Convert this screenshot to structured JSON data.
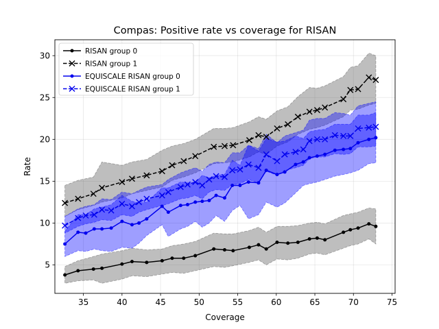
{
  "chart_data": {
    "type": "line",
    "title": "Compas: Positive rate vs coverage for RISAN",
    "xlabel": "Coverage",
    "ylabel": "Rate",
    "xlim": [
      31.3,
      75.4
    ],
    "ylim": [
      1.6,
      31.9
    ],
    "xticks": [
      35,
      40,
      45,
      50,
      55,
      60,
      65,
      70,
      75
    ],
    "yticks": [
      5,
      10,
      15,
      20,
      25,
      30
    ],
    "grid": true,
    "legend_position": "top-left",
    "series": [
      {
        "name": "RISAN group 0",
        "color": "#000000",
        "linestyle": "solid",
        "marker": "dot",
        "band_color": "#555555",
        "x": [
          32.6,
          34.3,
          36.3,
          37.4,
          40.0,
          41.3,
          43.2,
          45.2,
          46.5,
          48.0,
          49.5,
          51.9,
          53.3,
          54.4,
          56.5,
          57.7,
          58.7,
          60.1,
          61.5,
          62.8,
          64.3,
          65.3,
          66.3,
          68.7,
          69.6,
          70.6,
          72.0,
          72.9
        ],
        "y": [
          3.8,
          4.3,
          4.5,
          4.6,
          5.1,
          5.4,
          5.3,
          5.5,
          5.8,
          5.8,
          6.1,
          6.9,
          6.8,
          6.7,
          7.1,
          7.4,
          6.9,
          7.7,
          7.6,
          7.7,
          8.1,
          8.2,
          8.0,
          8.9,
          9.2,
          9.4,
          9.9,
          9.6
        ],
        "lower": [
          2.8,
          3.1,
          3.2,
          2.8,
          3.3,
          3.7,
          3.6,
          3.9,
          4.1,
          4.0,
          4.3,
          4.8,
          4.7,
          4.9,
          5.3,
          5.6,
          5.0,
          5.7,
          5.6,
          5.8,
          6.3,
          6.4,
          6.2,
          7.0,
          7.3,
          7.5,
          8.1,
          7.5
        ],
        "upper": [
          4.8,
          5.5,
          6.0,
          6.3,
          6.7,
          7.0,
          6.8,
          6.9,
          7.3,
          7.5,
          7.8,
          8.8,
          8.7,
          8.7,
          9.1,
          9.5,
          8.9,
          9.6,
          9.6,
          9.7,
          10.0,
          10.1,
          9.9,
          10.9,
          11.1,
          11.3,
          11.8,
          11.7
        ]
      },
      {
        "name": "RISAN group 1",
        "color": "#000000",
        "linestyle": "dashed",
        "marker": "x",
        "band_color": "#555555",
        "x": [
          32.6,
          34.3,
          36.3,
          37.4,
          40.0,
          41.3,
          43.2,
          45.2,
          46.5,
          48.0,
          49.5,
          51.9,
          53.3,
          54.4,
          56.5,
          57.7,
          58.7,
          60.1,
          61.5,
          62.8,
          64.3,
          65.3,
          66.3,
          68.7,
          69.6,
          70.6,
          72.0,
          72.9
        ],
        "y": [
          12.4,
          12.9,
          13.5,
          14.2,
          14.9,
          15.3,
          15.7,
          16.2,
          16.9,
          17.4,
          18.0,
          19.1,
          19.2,
          19.3,
          19.9,
          20.5,
          20.3,
          21.3,
          21.8,
          22.7,
          23.3,
          23.5,
          23.8,
          24.8,
          25.9,
          26.0,
          27.4,
          27.1
        ],
        "lower": [
          10.8,
          11.6,
          12.1,
          12.5,
          13.0,
          13.5,
          13.9,
          14.3,
          15.1,
          15.5,
          16.0,
          17.1,
          17.2,
          17.3,
          17.9,
          18.5,
          18.2,
          19.2,
          19.7,
          20.6,
          21.2,
          21.4,
          21.7,
          22.7,
          23.5,
          23.6,
          24.1,
          24.3
        ],
        "upper": [
          14.5,
          15.1,
          15.5,
          17.3,
          16.9,
          17.3,
          17.6,
          18.7,
          19.2,
          19.5,
          20.0,
          21.3,
          21.3,
          21.4,
          22.1,
          22.7,
          22.4,
          23.4,
          23.9,
          25.1,
          26.2,
          26.1,
          26.4,
          27.5,
          28.6,
          28.8,
          30.3,
          30.0
        ]
      },
      {
        "name": "EQUISCALE RISAN group 0",
        "color": "#0000ee",
        "linestyle": "solid",
        "marker": "dot",
        "band_color": "#0000ff",
        "x": [
          32.6,
          34.3,
          35.3,
          36.4,
          37.4,
          38.6,
          40.0,
          41.3,
          42.2,
          43.2,
          45.2,
          46.0,
          47.6,
          48.5,
          49.5,
          50.4,
          51.3,
          52.2,
          53.3,
          54.3,
          55.3,
          56.4,
          57.7,
          58.7,
          60.1,
          61.1,
          62.5,
          63.5,
          64.3,
          65.3,
          66.3,
          67.6,
          68.7,
          69.6,
          70.6,
          72.0,
          72.9
        ],
        "y": [
          7.5,
          8.9,
          8.8,
          9.3,
          9.3,
          9.4,
          10.2,
          9.8,
          10.0,
          10.5,
          12.0,
          11.3,
          12.1,
          12.2,
          12.5,
          12.6,
          12.7,
          13.3,
          13.0,
          14.5,
          14.5,
          14.9,
          14.8,
          16.3,
          15.8,
          16.1,
          17.0,
          17.3,
          17.8,
          18.0,
          18.2,
          18.7,
          18.8,
          18.9,
          19.6,
          20.0,
          20.2
        ],
        "lower": [
          6.0,
          6.7,
          6.6,
          6.9,
          6.7,
          6.6,
          7.1,
          7.0,
          7.6,
          8.5,
          9.8,
          8.4,
          9.3,
          9.6,
          10.2,
          9.5,
          10.0,
          10.9,
          10.2,
          11.5,
          12.1,
          10.5,
          11.0,
          12.5,
          11.9,
          12.4,
          13.6,
          14.5,
          14.7,
          14.9,
          15.2,
          15.6,
          15.8,
          16.0,
          16.3,
          17.1,
          17.2
        ],
        "upper": [
          9.0,
          11.0,
          11.0,
          11.7,
          11.9,
          12.2,
          13.3,
          12.6,
          12.4,
          12.5,
          14.2,
          14.2,
          14.9,
          14.8,
          14.8,
          15.7,
          15.4,
          15.7,
          15.8,
          17.5,
          16.9,
          19.3,
          18.6,
          20.1,
          19.7,
          19.8,
          20.4,
          20.1,
          20.9,
          21.1,
          21.2,
          21.8,
          21.8,
          21.8,
          22.9,
          22.9,
          23.2
        ]
      },
      {
        "name": "EQUISCALE RISAN group 1",
        "color": "#0000ee",
        "linestyle": "dashed",
        "marker": "x",
        "band_color": "#0000ff",
        "x": [
          32.6,
          34.3,
          35.3,
          36.4,
          37.4,
          38.6,
          40.0,
          41.3,
          42.2,
          43.2,
          45.2,
          46.0,
          47.6,
          48.5,
          49.5,
          50.4,
          51.3,
          52.2,
          53.3,
          54.3,
          55.3,
          56.4,
          57.7,
          58.7,
          60.1,
          61.1,
          62.5,
          63.5,
          64.3,
          65.3,
          66.3,
          67.6,
          68.7,
          69.6,
          70.6,
          72.0,
          72.9
        ],
        "y": [
          9.7,
          10.6,
          10.9,
          11.0,
          11.6,
          11.5,
          12.3,
          12.0,
          12.5,
          12.9,
          13.3,
          13.7,
          14.3,
          14.6,
          14.9,
          14.5,
          15.2,
          15.6,
          15.5,
          16.3,
          16.4,
          17.0,
          16.6,
          18.2,
          17.4,
          18.2,
          18.5,
          18.8,
          19.8,
          20.0,
          20.0,
          20.5,
          20.4,
          20.4,
          21.3,
          21.4,
          21.5
        ],
        "lower": [
          8.8,
          9.6,
          9.9,
          10.1,
          10.4,
          10.3,
          11.0,
          10.8,
          11.3,
          11.6,
          12.1,
          12.3,
          12.9,
          13.0,
          13.3,
          12.9,
          13.7,
          14.0,
          13.9,
          14.6,
          14.7,
          15.2,
          14.8,
          16.2,
          15.7,
          16.3,
          16.6,
          16.9,
          17.7,
          17.9,
          17.9,
          18.3,
          18.2,
          18.3,
          19.1,
          19.1,
          19.2
        ],
        "upper": [
          10.8,
          11.7,
          12.0,
          12.2,
          12.9,
          12.8,
          13.7,
          13.5,
          13.9,
          14.3,
          14.6,
          15.2,
          16.0,
          16.3,
          16.6,
          16.2,
          17.0,
          17.3,
          17.2,
          18.4,
          18.4,
          19.3,
          18.9,
          20.6,
          19.6,
          20.4,
          20.8,
          21.1,
          22.3,
          22.5,
          22.5,
          23.2,
          23.1,
          22.9,
          24.0,
          24.3,
          24.5
        ]
      }
    ]
  }
}
